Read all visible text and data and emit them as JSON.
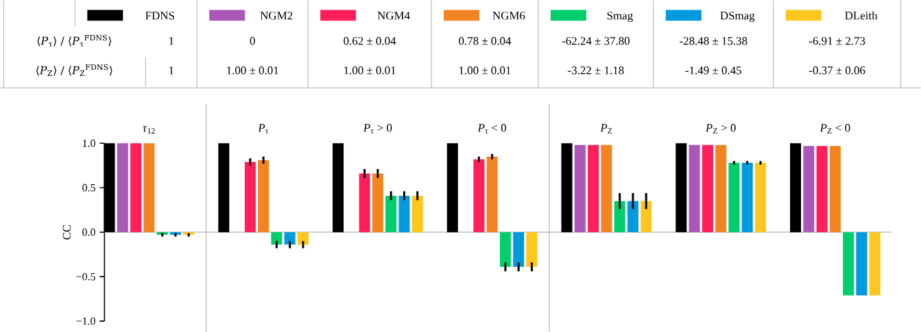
{
  "chart_data": {
    "type": "bar",
    "categories": [
      "*τ*$_{12}$",
      "*P*$_{τ}$",
      "*P*$_{τ}$ > 0",
      "*P*$_{τ}$ < 0",
      "*P*$_{Z}$",
      "*P*$_{Z}$ > 0",
      "*P*$_{Z}$ < 0"
    ],
    "ylabel": "CC",
    "ylim": [
      -1,
      1
    ],
    "yticks": [
      {
        "value": 1,
        "label": "1.0"
      },
      {
        "value": 0.5,
        "label": "0.5"
      },
      {
        "value": 0,
        "label": "0.0"
      },
      {
        "value": -0.5,
        "label": "−0.5"
      },
      {
        "value": -1,
        "label": "−1.0"
      }
    ],
    "legend": "top",
    "series": [
      {
        "name": "FDNS",
        "color": "#000000",
        "values": [
          1,
          1,
          1,
          1,
          1,
          1,
          1
        ],
        "errors": [
          null,
          null,
          null,
          null,
          null,
          null,
          null
        ]
      },
      {
        "name": "NGM2",
        "color": "#ab57b8",
        "values": [
          1,
          null,
          null,
          null,
          0.98,
          0.98,
          0.97
        ],
        "errors": [
          null,
          null,
          null,
          null,
          null,
          null,
          null
        ]
      },
      {
        "name": "NGM4",
        "color": "#ff1f5b",
        "values": [
          1,
          0.79,
          0.66,
          0.82,
          0.98,
          0.98,
          0.97
        ],
        "errors": [
          null,
          0.04,
          0.05,
          0.03,
          null,
          null,
          null
        ]
      },
      {
        "name": "NGM6",
        "color": "#f28522",
        "values": [
          1,
          0.81,
          0.66,
          0.85,
          0.98,
          0.98,
          0.97
        ],
        "errors": [
          null,
          0.04,
          0.05,
          0.03,
          null,
          null,
          null
        ]
      },
      {
        "name": "Smag",
        "color": "#00cd6c",
        "values": [
          -0.03,
          -0.14,
          0.41,
          -0.39,
          0.35,
          0.78,
          -0.71
        ],
        "errors": [
          0.02,
          0.04,
          0.05,
          0.05,
          0.09,
          0.02,
          null
        ]
      },
      {
        "name": "DSmag",
        "color": "#009ade",
        "values": [
          -0.03,
          -0.14,
          0.41,
          -0.39,
          0.35,
          0.78,
          -0.71
        ],
        "errors": [
          0.02,
          0.04,
          0.05,
          0.05,
          0.09,
          0.02,
          null
        ]
      },
      {
        "name": "DLeith",
        "color": "#ffc61e",
        "values": [
          -0.03,
          -0.14,
          0.41,
          -0.39,
          0.35,
          0.78,
          -0.71
        ],
        "errors": [
          0.02,
          0.04,
          0.05,
          0.05,
          0.09,
          0.02,
          null
        ]
      }
    ],
    "ref_lines": [
      {
        "axis": "y",
        "value": 0,
        "color": "#b0b0b0"
      }
    ],
    "annotations": [
      "⟨*P*$_{τ}$⟩ / ⟨*P*$_{τ}$$^{FDNS}$⟩",
      "1",
      "0",
      "0.62 ± 0.04",
      "0.78 ± 0.04",
      "-62.24 ± 37.80",
      "-28.48 ± 15.38",
      "-6.91 ± 2.73",
      "⟨*P*$_{Z}$⟩ / ⟨*P*$_{Z}$$^{FDNS}$⟩",
      "1",
      "1.00 ± 0.01",
      "1.00 ± 0.01",
      "1.00 ± 0.01",
      "-3.22 ± 1.18",
      "-1.49 ± 0.45",
      "-0.37 ± 0.06"
    ]
  }
}
